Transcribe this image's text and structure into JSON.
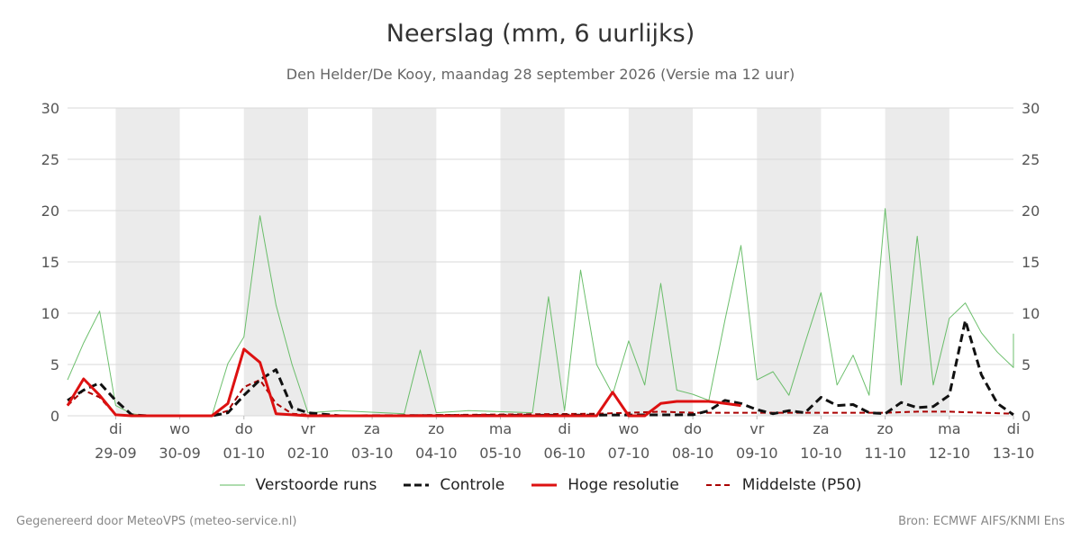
{
  "title": "Neerslag (mm, 6 uurlijks)",
  "subtitle": "Den Helder/De Kooy, maandag 28 september 2026 (Versie ma 12 uur)",
  "footer": {
    "left": "Gegenereerd door MeteoVPS (meteo-service.nl)",
    "right": "Bron: ECMWF AIFS/KNMI Ens"
  },
  "legend": [
    {
      "label": "Verstoorde runs",
      "color": "#5cb85c",
      "style": "thin"
    },
    {
      "label": "Controle",
      "color": "#111111",
      "style": "dashed"
    },
    {
      "label": "Hoge resolutie",
      "color": "#dd1111",
      "style": "solid"
    },
    {
      "label": "Middelste (P50)",
      "color": "#aa0000",
      "style": "dashed-thin"
    }
  ],
  "chart_data": {
    "type": "line",
    "ylim": [
      0,
      30
    ],
    "yticks": [
      0,
      5,
      10,
      15,
      20,
      25,
      30
    ],
    "xlim": [
      -0.25,
      14.5
    ],
    "grid": true,
    "shaded_days": [
      [
        0.5,
        1.5
      ],
      [
        2.5,
        3.5
      ],
      [
        4.5,
        5.5
      ],
      [
        6.5,
        7.5
      ],
      [
        8.5,
        9.5
      ],
      [
        10.5,
        11.5
      ],
      [
        12.5,
        13.5
      ],
      [
        14.5,
        15.0
      ]
    ],
    "x_ticks": [
      {
        "pos": 0.5,
        "day": "di",
        "date": "29-09"
      },
      {
        "pos": 1.5,
        "day": "wo",
        "date": "30-09"
      },
      {
        "pos": 2.5,
        "day": "do",
        "date": "01-10"
      },
      {
        "pos": 3.5,
        "day": "vr",
        "date": "02-10"
      },
      {
        "pos": 4.5,
        "day": "za",
        "date": "03-10"
      },
      {
        "pos": 5.5,
        "day": "zo",
        "date": "04-10"
      },
      {
        "pos": 6.5,
        "day": "ma",
        "date": "05-10"
      },
      {
        "pos": 7.5,
        "day": "di",
        "date": "06-10"
      },
      {
        "pos": 8.5,
        "day": "wo",
        "date": "07-10"
      },
      {
        "pos": 9.5,
        "day": "do",
        "date": "08-10"
      },
      {
        "pos": 10.5,
        "day": "vr",
        "date": "09-10"
      },
      {
        "pos": 11.5,
        "day": "za",
        "date": "10-10"
      },
      {
        "pos": 12.5,
        "day": "zo",
        "date": "11-10"
      },
      {
        "pos": 13.5,
        "day": "ma",
        "date": "12-10"
      },
      {
        "pos": 14.5,
        "day": "di",
        "date": "13-10"
      }
    ],
    "series": [
      {
        "name": "Controle",
        "x": [
          -0.25,
          0,
          0.25,
          0.5,
          0.75,
          1,
          2,
          2.25,
          2.5,
          2.75,
          3,
          3.25,
          3.5,
          4,
          9.5,
          9.75,
          10,
          10.25,
          10.5,
          10.75,
          11,
          11.25,
          11.5,
          11.75,
          12,
          12.25,
          12.5,
          12.75,
          13,
          13.25,
          13.5,
          13.75,
          14,
          14.25,
          14.5
        ],
        "y": [
          1.5,
          2.5,
          3.2,
          1.5,
          0.1,
          0,
          0,
          0.3,
          2.0,
          3.5,
          4.5,
          0.8,
          0.3,
          0,
          0.1,
          0.5,
          1.5,
          1.2,
          0.6,
          0.2,
          0.5,
          0.3,
          1.8,
          1.0,
          1.1,
          0.3,
          0.2,
          1.3,
          0.8,
          0.9,
          2.0,
          9.3,
          4.0,
          1.2,
          0.1
        ]
      },
      {
        "name": "Hoge resolutie",
        "x": [
          -0.25,
          0,
          0.25,
          0.5,
          0.75,
          1,
          2,
          2.25,
          2.5,
          2.75,
          3,
          3.25,
          3.5,
          8.0,
          8.25,
          8.5,
          8.75,
          9.0,
          9.25,
          9.5,
          9.75,
          10.0,
          10.25
        ],
        "y": [
          1.0,
          3.6,
          2.0,
          0.1,
          0,
          0,
          0,
          1.2,
          6.5,
          5.2,
          0.2,
          0.1,
          0,
          0,
          2.3,
          0,
          0,
          1.2,
          1.4,
          1.4,
          1.4,
          1.2,
          1.0
        ]
      },
      {
        "name": "Middelste (P50)",
        "x": [
          -0.25,
          0,
          0.25,
          0.5,
          0.75,
          1,
          2,
          2.25,
          2.5,
          2.75,
          3,
          3.25,
          3.5,
          4,
          8,
          8.5,
          9,
          9.5,
          10,
          10.5,
          11,
          11.5,
          12,
          12.5,
          13,
          13.5,
          14,
          14.5
        ],
        "y": [
          1.0,
          2.5,
          1.8,
          0.1,
          0,
          0,
          0,
          0.5,
          2.8,
          3.5,
          1.2,
          0.2,
          0.1,
          0,
          0.2,
          0.3,
          0.4,
          0.3,
          0.3,
          0.3,
          0.3,
          0.3,
          0.3,
          0.3,
          0.4,
          0.4,
          0.3,
          0.2
        ]
      },
      {
        "name": "Verstoorde runs",
        "x": [
          -0.25,
          0,
          0.25,
          0.5,
          0.75,
          1,
          2,
          2.25,
          2.5,
          2.75,
          3,
          3.25,
          3.5,
          4,
          5,
          5.25,
          5.5,
          6,
          7,
          7.25,
          7.5,
          7.75,
          8,
          8.25,
          8.5,
          8.75,
          9,
          9.25,
          9.5,
          9.75,
          10,
          10.25,
          10.5,
          10.75,
          11,
          11.25,
          11.5,
          11.75,
          12,
          12.25,
          12.5,
          12.75,
          13,
          13.25,
          13.5,
          13.75,
          14,
          14.25,
          14.5,
          14.75
        ],
        "y": [
          3.5,
          7.1,
          10.2,
          1.0,
          0.2,
          0,
          0,
          5.1,
          7.7,
          19.5,
          10.8,
          5.0,
          0.3,
          0.5,
          0.2,
          6.4,
          0.3,
          0.5,
          0.3,
          11.6,
          0.5,
          14.2,
          5.0,
          2.1,
          7.3,
          3.0,
          12.9,
          2.5,
          2.1,
          1.5,
          9.3,
          16.6,
          3.5,
          4.3,
          2.0,
          7.1,
          12.0,
          3.0,
          5.9,
          2.0,
          20.2,
          3.0,
          17.5,
          3.0,
          9.5,
          11.0,
          8.1,
          6.2,
          4.7,
          8.0
        ]
      }
    ]
  }
}
